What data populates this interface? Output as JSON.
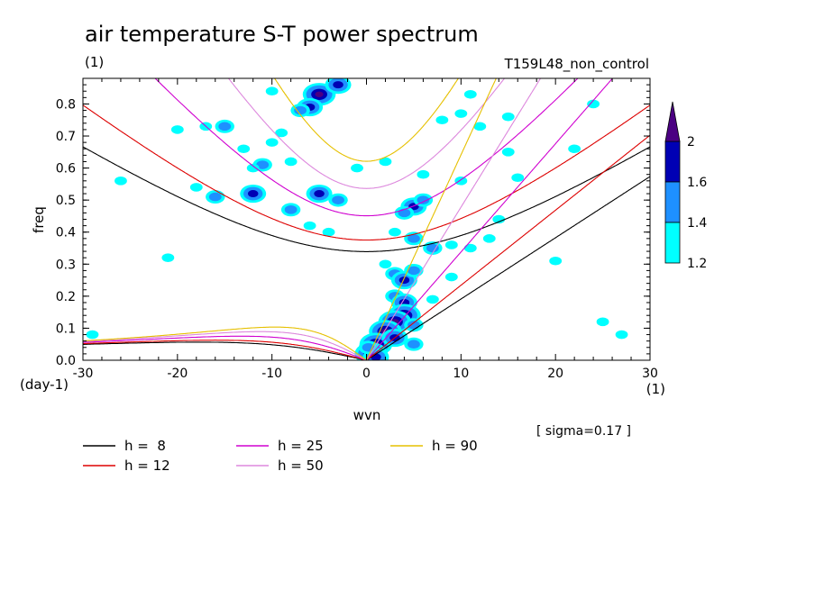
{
  "title": "air temperature S-T power spectrum",
  "units_label": "(1)",
  "run_label": "T159L48_non_control",
  "chart_data": {
    "type": "heatmap",
    "xlabel": "wvn",
    "ylabel": "freq",
    "x_unit_label": "(1)",
    "y_unit_label": "(day-1)",
    "xlim": [
      -30,
      30
    ],
    "ylim": [
      0,
      0.88
    ],
    "xticks": [
      "-30",
      "-20",
      "-10",
      "0",
      "10",
      "20",
      "30"
    ],
    "yticks": [
      "0.0",
      "0.1",
      "0.2",
      "0.3",
      "0.4",
      "0.5",
      "0.6",
      "0.7",
      "0.8"
    ],
    "sigma_note": "[ sigma=0.17 ]",
    "colorbar": {
      "levels": [
        "1.2",
        "1.4",
        "1.6",
        "2"
      ],
      "colors": [
        "#00ffff",
        "#1e90ff",
        "#0000b4",
        "#4b0082"
      ]
    },
    "dispersion_curves": [
      {
        "name": "h =  8",
        "h": 8,
        "color": "#000000"
      },
      {
        "name": "h = 12",
        "h": 12,
        "color": "#dd0000"
      },
      {
        "name": "h = 25",
        "h": 25,
        "color": "#d000d0"
      },
      {
        "name": "h = 50",
        "h": 50,
        "color": "#dd88dd"
      },
      {
        "name": "h = 90",
        "h": 90,
        "color": "#e6c000"
      }
    ],
    "shaded_blobs": [
      {
        "x": -5,
        "y": 0.83,
        "level": 3
      },
      {
        "x": -6,
        "y": 0.79,
        "level": 2
      },
      {
        "x": -7,
        "y": 0.78,
        "level": 1
      },
      {
        "x": -3,
        "y": 0.86,
        "level": 2
      },
      {
        "x": -15,
        "y": 0.73,
        "level": 1
      },
      {
        "x": -17,
        "y": 0.73,
        "level": 0
      },
      {
        "x": -13,
        "y": 0.66,
        "level": 0
      },
      {
        "x": -10,
        "y": 0.68,
        "level": 0
      },
      {
        "x": -9,
        "y": 0.71,
        "level": 0
      },
      {
        "x": -11,
        "y": 0.61,
        "level": 1
      },
      {
        "x": -12,
        "y": 0.6,
        "level": 0
      },
      {
        "x": -8,
        "y": 0.62,
        "level": 0
      },
      {
        "x": -18,
        "y": 0.54,
        "level": 0
      },
      {
        "x": -16,
        "y": 0.51,
        "level": 1
      },
      {
        "x": -12,
        "y": 0.52,
        "level": 2
      },
      {
        "x": -8,
        "y": 0.47,
        "level": 1
      },
      {
        "x": -6,
        "y": 0.42,
        "level": 0
      },
      {
        "x": -4,
        "y": 0.4,
        "level": 0
      },
      {
        "x": -3,
        "y": 0.5,
        "level": 1
      },
      {
        "x": -5,
        "y": 0.52,
        "level": 2
      },
      {
        "x": 5,
        "y": 0.48,
        "level": 2
      },
      {
        "x": 6,
        "y": 0.5,
        "level": 1
      },
      {
        "x": 4,
        "y": 0.46,
        "level": 1
      },
      {
        "x": 3,
        "y": 0.4,
        "level": 0
      },
      {
        "x": 5,
        "y": 0.38,
        "level": 1
      },
      {
        "x": 7,
        "y": 0.35,
        "level": 1
      },
      {
        "x": 9,
        "y": 0.36,
        "level": 0
      },
      {
        "x": 3,
        "y": 0.27,
        "level": 1
      },
      {
        "x": 2,
        "y": 0.3,
        "level": 0
      },
      {
        "x": 4,
        "y": 0.25,
        "level": 2
      },
      {
        "x": 5,
        "y": 0.28,
        "level": 1
      },
      {
        "x": 3,
        "y": 0.2,
        "level": 1
      },
      {
        "x": 4,
        "y": 0.18,
        "level": 2
      },
      {
        "x": 4,
        "y": 0.14,
        "level": 3
      },
      {
        "x": 3,
        "y": 0.12,
        "level": 3
      },
      {
        "x": 2,
        "y": 0.09,
        "level": 3
      },
      {
        "x": 1,
        "y": 0.05,
        "level": 3
      },
      {
        "x": 0.5,
        "y": 0.02,
        "level": 3
      },
      {
        "x": 1,
        "y": 0.01,
        "level": 2
      },
      {
        "x": 0.2,
        "y": 0.04,
        "level": 1
      },
      {
        "x": 3,
        "y": 0.07,
        "level": 2
      },
      {
        "x": 5,
        "y": 0.05,
        "level": 1
      },
      {
        "x": 5,
        "y": 0.11,
        "level": 1
      },
      {
        "x": 7,
        "y": 0.19,
        "level": 0
      },
      {
        "x": 9,
        "y": 0.26,
        "level": 0
      },
      {
        "x": 11,
        "y": 0.35,
        "level": 0
      },
      {
        "x": 13,
        "y": 0.38,
        "level": 0
      },
      {
        "x": 14,
        "y": 0.44,
        "level": 0
      },
      {
        "x": 15,
        "y": 0.65,
        "level": 0
      },
      {
        "x": 15,
        "y": 0.76,
        "level": 0
      },
      {
        "x": 12,
        "y": 0.73,
        "level": 0
      },
      {
        "x": 10,
        "y": 0.77,
        "level": 0
      },
      {
        "x": 8,
        "y": 0.75,
        "level": 0
      },
      {
        "x": 11,
        "y": 0.83,
        "level": 0
      },
      {
        "x": 16,
        "y": 0.57,
        "level": 0
      },
      {
        "x": 22,
        "y": 0.66,
        "level": 0
      },
      {
        "x": 25,
        "y": 0.12,
        "level": 0
      },
      {
        "x": 27,
        "y": 0.08,
        "level": 0
      },
      {
        "x": 20,
        "y": 0.31,
        "level": 0
      },
      {
        "x": 10,
        "y": 0.56,
        "level": 0
      },
      {
        "x": 6,
        "y": 0.58,
        "level": 0
      },
      {
        "x": 2,
        "y": 0.62,
        "level": 0
      },
      {
        "x": -1,
        "y": 0.6,
        "level": 0
      },
      {
        "x": -20,
        "y": 0.72,
        "level": 0
      },
      {
        "x": -21,
        "y": 0.32,
        "level": 0
      },
      {
        "x": -26,
        "y": 0.56,
        "level": 0
      },
      {
        "x": -10,
        "y": 0.84,
        "level": 0
      },
      {
        "x": 24,
        "y": 0.8,
        "level": 0
      },
      {
        "x": -29,
        "y": 0.08,
        "level": 0
      }
    ]
  },
  "legend": {
    "items": [
      {
        "label": "h =  8",
        "color": "#000000"
      },
      {
        "label": "h = 12",
        "color": "#dd0000"
      },
      {
        "label": "h = 25",
        "color": "#d000d0"
      },
      {
        "label": "h = 50",
        "color": "#dd88dd"
      },
      {
        "label": "h = 90",
        "color": "#e6c000"
      }
    ]
  }
}
